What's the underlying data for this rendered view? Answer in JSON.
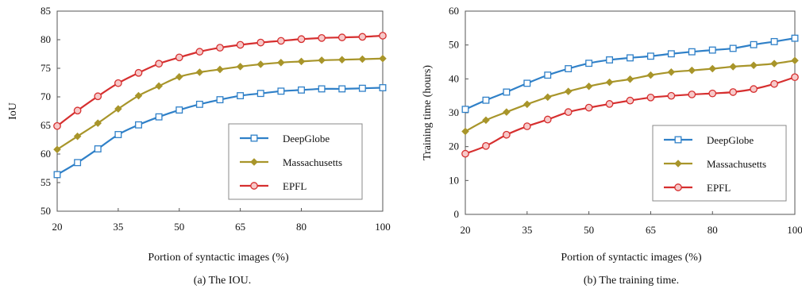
{
  "colors": {
    "DeepGlobe": "#2f80c8",
    "Massachusetts": "#a8952a",
    "EPFL": "#d62f2f"
  },
  "chart_data": [
    {
      "type": "line",
      "caption": "(a) The IOU.",
      "xlabel": "Portion of syntactic images (%)",
      "ylabel": "IoU",
      "xlim": [
        20,
        100
      ],
      "ylim": [
        50,
        85
      ],
      "xticks": [
        20,
        35,
        50,
        65,
        80,
        100
      ],
      "yticks": [
        50,
        55,
        60,
        65,
        70,
        75,
        80,
        85
      ],
      "grid": false,
      "legend": "lower-right",
      "x": [
        20,
        25,
        30,
        35,
        40,
        45,
        50,
        55,
        60,
        65,
        70,
        75,
        80,
        85,
        90,
        95,
        100
      ],
      "series": [
        {
          "name": "DeepGlobe",
          "marker": "square",
          "values": [
            56.4,
            58.5,
            60.9,
            63.4,
            65.1,
            66.5,
            67.7,
            68.7,
            69.5,
            70.2,
            70.6,
            71.0,
            71.2,
            71.4,
            71.4,
            71.5,
            71.6
          ]
        },
        {
          "name": "Massachusetts",
          "marker": "diamond",
          "values": [
            60.8,
            63.1,
            65.4,
            67.9,
            70.2,
            71.9,
            73.5,
            74.3,
            74.8,
            75.3,
            75.7,
            76.0,
            76.2,
            76.4,
            76.5,
            76.6,
            76.7
          ]
        },
        {
          "name": "EPFL",
          "marker": "circle",
          "values": [
            64.9,
            67.6,
            70.1,
            72.4,
            74.2,
            75.8,
            76.9,
            77.9,
            78.6,
            79.1,
            79.5,
            79.8,
            80.1,
            80.3,
            80.4,
            80.5,
            80.7
          ]
        }
      ]
    },
    {
      "type": "line",
      "caption": "(b) The training time.",
      "xlabel": "Portion of syntactic images (%)",
      "ylabel": "Training time (hours)",
      "xlim": [
        20,
        100
      ],
      "ylim": [
        0,
        60
      ],
      "xticks": [
        20,
        35,
        50,
        65,
        80,
        100
      ],
      "yticks": [
        0,
        10,
        20,
        30,
        40,
        50,
        60
      ],
      "grid": false,
      "legend": "lower-right",
      "x": [
        20,
        25,
        30,
        35,
        40,
        45,
        50,
        55,
        60,
        65,
        70,
        75,
        80,
        85,
        90,
        95,
        100
      ],
      "series": [
        {
          "name": "DeepGlobe",
          "marker": "square",
          "values": [
            31.0,
            33.7,
            36.1,
            38.7,
            41.1,
            43.0,
            44.6,
            45.6,
            46.2,
            46.7,
            47.4,
            48.0,
            48.5,
            49.0,
            50.1,
            51.0,
            52.0
          ]
        },
        {
          "name": "Massachusetts",
          "marker": "diamond",
          "values": [
            24.5,
            27.8,
            30.2,
            32.5,
            34.6,
            36.3,
            37.8,
            39.0,
            39.9,
            41.1,
            42.0,
            42.5,
            43.0,
            43.6,
            44.0,
            44.5,
            45.4
          ]
        },
        {
          "name": "EPFL",
          "marker": "circle",
          "values": [
            17.9,
            20.2,
            23.5,
            26.0,
            28.0,
            30.2,
            31.5,
            32.6,
            33.6,
            34.5,
            35.0,
            35.4,
            35.7,
            36.1,
            37.0,
            38.5,
            40.5
          ]
        }
      ]
    }
  ]
}
